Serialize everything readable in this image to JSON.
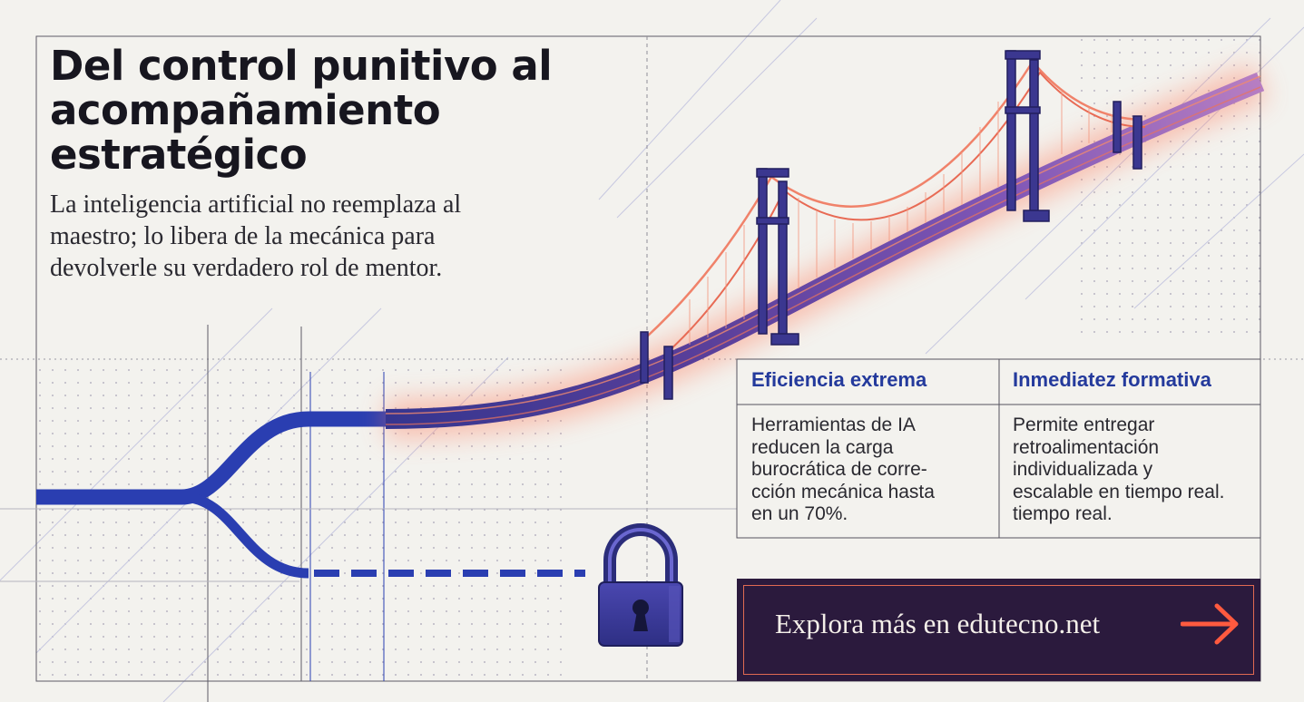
{
  "headline": {
    "lines": [
      "Del control punitivo al",
      "acompañamiento",
      "estratégico"
    ]
  },
  "subtitle": {
    "lines": [
      "La inteligencia artificial no reemplaza al",
      "maestro; lo libera de la mecánica para",
      "devolverle su verdadero rol de mentor."
    ]
  },
  "cards": [
    {
      "title": "Eficiencia extrema",
      "body_lines": [
        "Herramientas de IA",
        "reducen la carga",
        "burocrática de corre-",
        "cción mecánica hasta",
        "en un 70%."
      ]
    },
    {
      "title": "Inmediatez formativa",
      "body_lines": [
        "Permite entregar",
        "retroalimentación",
        "individualizada y",
        "escalable en tiempo real.",
        "tiempo real."
      ]
    }
  ],
  "cta": {
    "label": "Explora más en edutecno.net",
    "icon": "arrow-right-icon"
  },
  "illustration": {
    "icons": [
      "bridge-icon",
      "padlock-icon",
      "branching-path"
    ]
  },
  "colors": {
    "background": "#f3f2ee",
    "ink": "#17161f",
    "accent_blue": "#2a3eb1",
    "accent_coral": "#e8684f",
    "navy": "#2b1a3d"
  }
}
